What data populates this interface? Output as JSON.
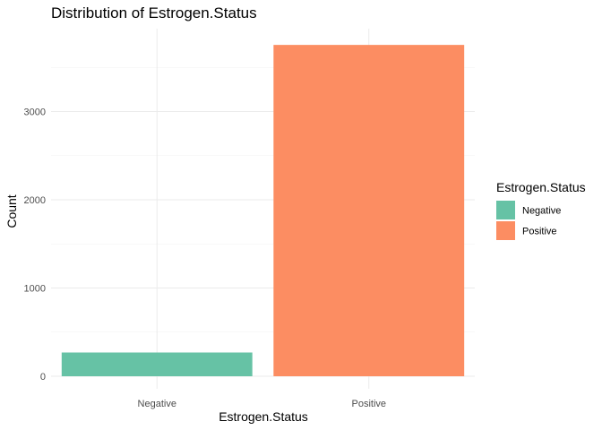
{
  "chart_data": {
    "type": "bar",
    "title": "Distribution of Estrogen.Status",
    "xlabel": "Estrogen.Status",
    "ylabel": "Count",
    "categories": [
      "Negative",
      "Positive"
    ],
    "values": [
      269,
      3755
    ],
    "colors": [
      "#66C2A5",
      "#FC8D62"
    ],
    "ylim": [
      0,
      3755
    ],
    "yticks": [
      0,
      1000,
      2000,
      3000
    ],
    "grid": true,
    "legend": {
      "title": "Estrogen.Status",
      "position": "right",
      "entries": [
        "Negative",
        "Positive"
      ]
    }
  }
}
